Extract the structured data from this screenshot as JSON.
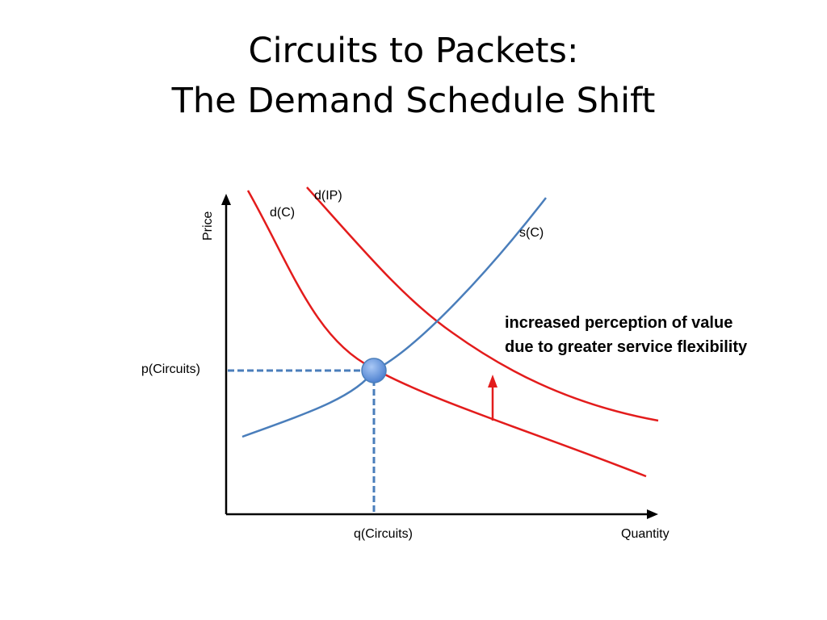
{
  "slide": {
    "title_line_1": "Circuits to Packets:",
    "title_line_2": "The Demand Schedule Shift"
  },
  "diagram": {
    "axis_y_label": "Price",
    "axis_x_label": "Quantity",
    "price_marker_label": "p(Circuits)",
    "quantity_marker_label": "q(Circuits)",
    "curves": {
      "demand_circuits": "d(C)",
      "demand_ip": "d(IP)",
      "supply_circuits": "s(C)"
    },
    "annotation_line_1": "increased perception of value",
    "annotation_line_2": "due to greater service flexibility",
    "colors": {
      "demand": "#e31c1c",
      "supply": "#4a7ebb",
      "guide": "#4a7ebb",
      "point_fill": "#6f9de0",
      "axis": "#000000"
    }
  }
}
